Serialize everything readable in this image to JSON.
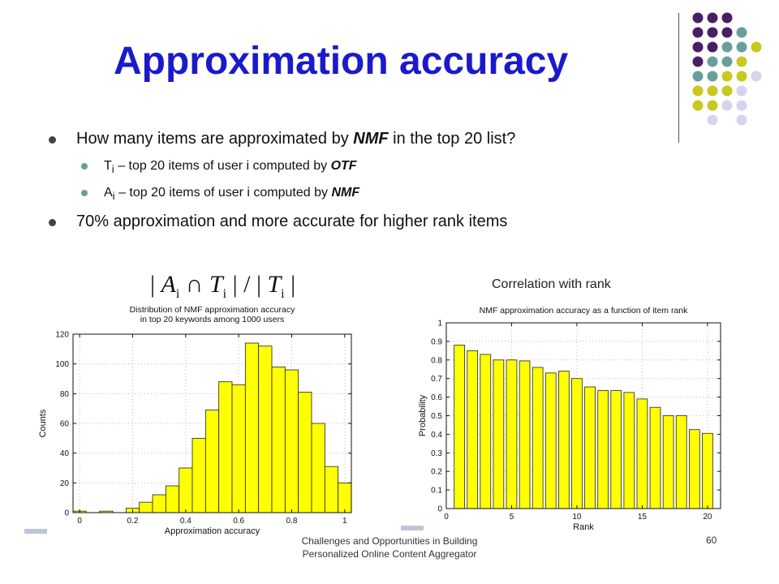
{
  "slide": {
    "title": "Approximation accuracy",
    "bullets": {
      "b1": {
        "pre": "How many items are approximated by ",
        "em": "NMF",
        "post": " in the top 20 list?"
      },
      "b1_1": {
        "letter": "T",
        "sub": "i",
        "text": " – top 20 items of user i  computed by ",
        "em": "OTF"
      },
      "b1_2": {
        "letter": "A",
        "sub": "i",
        "text": " – top 20 items of user i computed by ",
        "em": "NMF"
      },
      "b2": {
        "text": "70% approximation and more accurate for higher rank items"
      }
    },
    "formula": {
      "a": "A",
      "a_sub": "i",
      "op": "∩",
      "t": "T",
      "t_sub": "i",
      "slash": "/"
    },
    "correlation_label": "Correlation with rank",
    "footer": {
      "line1": "Challenges and Opportunities in Building",
      "line2": "Personalized Online Content Aggregator"
    },
    "page_number": "60"
  },
  "colors": {
    "title": "#1a1acc",
    "bar": "#ffff00",
    "dot_purple": "#4a1e66",
    "dot_teal": "#6a9e9c",
    "dot_olive": "#c8c81e",
    "dot_lavender": "#d4d4ec"
  },
  "chart_data": [
    {
      "type": "bar",
      "title": "Distribution of NMF approximation accuracy\nin top 20 keywords among 1000 users",
      "xlabel": "Approximation accuracy",
      "ylabel": "Counts",
      "xlim": [
        -0.025,
        1.025
      ],
      "ylim": [
        0,
        120
      ],
      "xticks": [
        0,
        0.2,
        0.4,
        0.6,
        0.8,
        1
      ],
      "yticks": [
        0,
        20,
        40,
        60,
        80,
        100,
        120
      ],
      "bin_width": 0.05,
      "x": [
        0,
        0.05,
        0.1,
        0.15,
        0.2,
        0.25,
        0.3,
        0.35,
        0.4,
        0.45,
        0.5,
        0.55,
        0.6,
        0.65,
        0.7,
        0.75,
        0.8,
        0.85,
        0.9,
        0.95,
        1.0
      ],
      "values": [
        1,
        0,
        1,
        0,
        3,
        7,
        12,
        18,
        30,
        50,
        69,
        88,
        86,
        114,
        112,
        98,
        96,
        81,
        60,
        31,
        20
      ],
      "grid": true
    },
    {
      "type": "bar",
      "title": "NMF approximation accuracy as a function of item rank",
      "xlabel": "Rank",
      "ylabel": "Probability",
      "xlim": [
        0,
        21
      ],
      "ylim": [
        0,
        1
      ],
      "xticks": [
        0,
        5,
        10,
        15,
        20
      ],
      "yticks": [
        0,
        0.1,
        0.2,
        0.3,
        0.4,
        0.5,
        0.6,
        0.7,
        0.8,
        0.9,
        1
      ],
      "bin_width": 0.8,
      "x": [
        1,
        2,
        3,
        4,
        5,
        6,
        7,
        8,
        9,
        10,
        11,
        12,
        13,
        14,
        15,
        16,
        17,
        18,
        19,
        20
      ],
      "values": [
        0.88,
        0.85,
        0.83,
        0.8,
        0.8,
        0.795,
        0.76,
        0.73,
        0.74,
        0.7,
        0.655,
        0.635,
        0.635,
        0.625,
        0.59,
        0.545,
        0.5,
        0.5,
        0.425,
        0.405
      ],
      "grid": true
    }
  ]
}
